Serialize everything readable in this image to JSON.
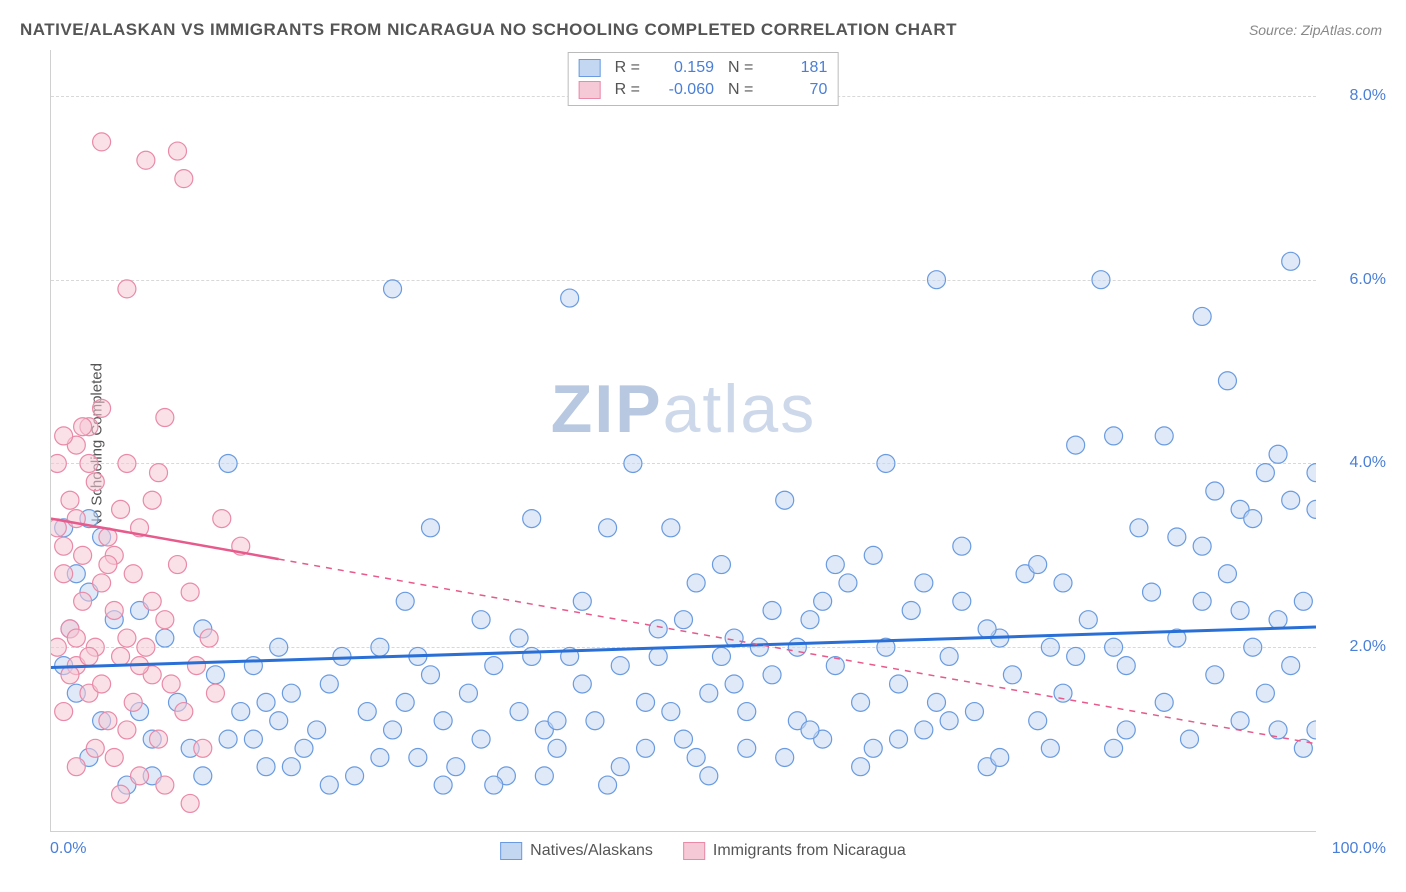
{
  "title": "NATIVE/ALASKAN VS IMMIGRANTS FROM NICARAGUA NO SCHOOLING COMPLETED CORRELATION CHART",
  "source": "Source: ZipAtlas.com",
  "y_axis_label": "No Schooling Completed",
  "watermark_bold": "ZIP",
  "watermark_light": "atlas",
  "chart": {
    "type": "scatter",
    "x_domain": [
      0,
      100
    ],
    "y_domain": [
      0,
      8.5
    ],
    "x_ticks": [
      {
        "pos": 0,
        "label": "0.0%"
      },
      {
        "pos": 100,
        "label": "100.0%"
      }
    ],
    "y_ticks": [
      {
        "pos": 2.0,
        "label": "2.0%"
      },
      {
        "pos": 4.0,
        "label": "4.0%"
      },
      {
        "pos": 6.0,
        "label": "6.0%"
      },
      {
        "pos": 8.0,
        "label": "8.0%"
      }
    ],
    "grid_color": "#d8d8d8",
    "background_color": "#ffffff",
    "series": [
      {
        "id": "blue",
        "label": "Natives/Alaskans",
        "R": "0.159",
        "N": "181",
        "marker_fill": "#c4d7f2",
        "marker_stroke": "#6a9be0",
        "marker_radius": 9,
        "fill_opacity": 0.55,
        "trend": {
          "x1": 0,
          "y1": 1.78,
          "x2": 100,
          "y2": 2.22,
          "solid_until_x": 100,
          "color": "#2a6fd6",
          "width": 3
        },
        "points": [
          [
            1,
            1.8
          ],
          [
            1,
            3.3
          ],
          [
            2,
            2.8
          ],
          [
            3,
            2.6
          ],
          [
            4,
            1.2
          ],
          [
            3,
            3.4
          ],
          [
            1.5,
            2.2
          ],
          [
            2,
            1.5
          ],
          [
            4,
            3.2
          ],
          [
            5,
            2.3
          ],
          [
            6,
            0.5
          ],
          [
            7,
            1.3
          ],
          [
            8,
            1.0
          ],
          [
            9,
            2.1
          ],
          [
            10,
            1.4
          ],
          [
            11,
            0.9
          ],
          [
            12,
            2.2
          ],
          [
            13,
            1.7
          ],
          [
            14,
            1.0
          ],
          [
            15,
            1.3
          ],
          [
            16,
            1.8
          ],
          [
            17,
            0.7
          ],
          [
            18,
            1.2
          ],
          [
            19,
            1.5
          ],
          [
            20,
            0.9
          ],
          [
            21,
            1.1
          ],
          [
            22,
            1.6
          ],
          [
            23,
            1.9
          ],
          [
            24,
            0.6
          ],
          [
            25,
            1.3
          ],
          [
            26,
            2.0
          ],
          [
            14,
            4.0
          ],
          [
            27,
            5.9
          ],
          [
            28,
            1.4
          ],
          [
            29,
            0.8
          ],
          [
            30,
            1.7
          ],
          [
            31,
            1.2
          ],
          [
            32,
            0.7
          ],
          [
            33,
            1.5
          ],
          [
            34,
            1.0
          ],
          [
            35,
            1.8
          ],
          [
            36,
            0.6
          ],
          [
            37,
            1.3
          ],
          [
            38,
            3.4
          ],
          [
            39,
            1.1
          ],
          [
            40,
            0.9
          ],
          [
            41,
            5.8
          ],
          [
            42,
            1.6
          ],
          [
            43,
            1.2
          ],
          [
            44,
            3.3
          ],
          [
            45,
            0.7
          ],
          [
            46,
            4.0
          ],
          [
            47,
            1.4
          ],
          [
            48,
            1.9
          ],
          [
            49,
            3.3
          ],
          [
            50,
            1.0
          ],
          [
            51,
            2.7
          ],
          [
            52,
            1.5
          ],
          [
            53,
            1.9
          ],
          [
            54,
            2.1
          ],
          [
            55,
            1.3
          ],
          [
            56,
            2.0
          ],
          [
            57,
            1.7
          ],
          [
            58,
            0.8
          ],
          [
            59,
            1.2
          ],
          [
            60,
            2.3
          ],
          [
            61,
            1.0
          ],
          [
            62,
            1.8
          ],
          [
            63,
            2.7
          ],
          [
            64,
            1.4
          ],
          [
            65,
            0.9
          ],
          [
            66,
            2.0
          ],
          [
            67,
            1.6
          ],
          [
            68,
            2.4
          ],
          [
            69,
            1.1
          ],
          [
            70,
            6.0
          ],
          [
            71,
            1.9
          ],
          [
            72,
            2.5
          ],
          [
            73,
            1.3
          ],
          [
            74,
            0.7
          ],
          [
            75,
            2.1
          ],
          [
            76,
            1.7
          ],
          [
            77,
            2.8
          ],
          [
            78,
            1.2
          ],
          [
            79,
            2.0
          ],
          [
            80,
            1.5
          ],
          [
            81,
            4.2
          ],
          [
            82,
            2.3
          ],
          [
            83,
            6.0
          ],
          [
            84,
            0.9
          ],
          [
            85,
            1.8
          ],
          [
            86,
            3.3
          ],
          [
            87,
            2.6
          ],
          [
            84,
            4.3
          ],
          [
            88,
            1.4
          ],
          [
            89,
            2.1
          ],
          [
            90,
            1.0
          ],
          [
            91,
            3.1
          ],
          [
            91,
            5.6
          ],
          [
            92,
            1.7
          ],
          [
            93,
            2.8
          ],
          [
            93,
            4.9
          ],
          [
            94,
            3.5
          ],
          [
            94,
            1.2
          ],
          [
            95,
            3.4
          ],
          [
            95,
            2.0
          ],
          [
            96,
            3.9
          ],
          [
            96,
            1.5
          ],
          [
            97,
            4.1
          ],
          [
            97,
            2.3
          ],
          [
            98,
            3.6
          ],
          [
            98,
            1.8
          ],
          [
            98,
            6.2
          ],
          [
            99,
            2.5
          ],
          [
            99,
            0.9
          ],
          [
            100,
            1.1
          ],
          [
            30,
            3.3
          ],
          [
            35,
            0.5
          ],
          [
            40,
            1.2
          ],
          [
            45,
            1.8
          ],
          [
            50,
            2.3
          ],
          [
            55,
            0.9
          ],
          [
            60,
            1.1
          ],
          [
            65,
            3.0
          ],
          [
            70,
            1.4
          ],
          [
            75,
            0.8
          ],
          [
            80,
            2.7
          ],
          [
            85,
            1.1
          ],
          [
            52,
            0.6
          ],
          [
            58,
            3.6
          ],
          [
            62,
            2.9
          ],
          [
            48,
            2.2
          ],
          [
            42,
            2.5
          ],
          [
            38,
            1.9
          ],
          [
            66,
            4.0
          ],
          [
            72,
            3.1
          ],
          [
            78,
            2.9
          ],
          [
            88,
            4.3
          ],
          [
            92,
            3.7
          ],
          [
            22,
            0.5
          ],
          [
            26,
            0.8
          ],
          [
            34,
            2.3
          ],
          [
            44,
            0.5
          ],
          [
            54,
            1.6
          ],
          [
            64,
            0.7
          ],
          [
            74,
            2.2
          ],
          [
            84,
            2.0
          ],
          [
            94,
            2.4
          ],
          [
            18,
            2.0
          ],
          [
            28,
            2.5
          ],
          [
            8,
            0.6
          ],
          [
            12,
            0.6
          ],
          [
            16,
            1.0
          ],
          [
            100,
            3.5
          ],
          [
            100,
            3.9
          ],
          [
            97,
            1.1
          ],
          [
            89,
            3.2
          ],
          [
            79,
            0.9
          ],
          [
            69,
            2.7
          ],
          [
            59,
            2.0
          ],
          [
            49,
            1.3
          ],
          [
            39,
            0.6
          ],
          [
            29,
            1.9
          ],
          [
            19,
            0.7
          ],
          [
            31,
            0.5
          ],
          [
            41,
            1.9
          ],
          [
            51,
            0.8
          ],
          [
            61,
            2.5
          ],
          [
            71,
            1.2
          ],
          [
            81,
            1.9
          ],
          [
            91,
            2.5
          ],
          [
            53,
            2.9
          ],
          [
            57,
            2.4
          ],
          [
            47,
            0.9
          ],
          [
            37,
            2.1
          ],
          [
            27,
            1.1
          ],
          [
            17,
            1.4
          ],
          [
            7,
            2.4
          ],
          [
            3,
            0.8
          ],
          [
            67,
            1.0
          ]
        ]
      },
      {
        "id": "pink",
        "label": "Immigrants from Nicaragua",
        "R": "-0.060",
        "N": "70",
        "marker_fill": "#f6c9d6",
        "marker_stroke": "#e98aa8",
        "marker_radius": 9,
        "fill_opacity": 0.55,
        "trend": {
          "x1": 0,
          "y1": 3.4,
          "x2": 100,
          "y2": 0.95,
          "solid_until_x": 18,
          "color": "#e75a8c",
          "width": 2.5
        },
        "points": [
          [
            0.5,
            3.3
          ],
          [
            1,
            3.1
          ],
          [
            1,
            2.8
          ],
          [
            1.5,
            3.6
          ],
          [
            1.5,
            2.2
          ],
          [
            2,
            4.2
          ],
          [
            2,
            1.8
          ],
          [
            2.5,
            3.0
          ],
          [
            2.5,
            2.5
          ],
          [
            3,
            4.4
          ],
          [
            3,
            1.5
          ],
          [
            3.5,
            2.0
          ],
          [
            3.5,
            3.8
          ],
          [
            4,
            2.7
          ],
          [
            4,
            4.6
          ],
          [
            4.5,
            1.2
          ],
          [
            4.5,
            3.2
          ],
          [
            5,
            2.4
          ],
          [
            5,
            0.8
          ],
          [
            5.5,
            3.5
          ],
          [
            5.5,
            1.9
          ],
          [
            6,
            2.1
          ],
          [
            6,
            4.0
          ],
          [
            6.5,
            1.4
          ],
          [
            6.5,
            2.8
          ],
          [
            7,
            3.3
          ],
          [
            7,
            0.6
          ],
          [
            7.5,
            2.0
          ],
          [
            7.5,
            7.3
          ],
          [
            8,
            1.7
          ],
          [
            8,
            2.5
          ],
          [
            8.5,
            3.9
          ],
          [
            8.5,
            1.0
          ],
          [
            9,
            2.3
          ],
          [
            9,
            0.5
          ],
          [
            9.5,
            1.6
          ],
          [
            10,
            7.4
          ],
          [
            10,
            2.9
          ],
          [
            10.5,
            1.3
          ],
          [
            10.5,
            7.1
          ],
          [
            11,
            2.6
          ],
          [
            11.5,
            1.8
          ],
          [
            12,
            0.9
          ],
          [
            12.5,
            2.1
          ],
          [
            13,
            1.5
          ],
          [
            13.5,
            3.4
          ],
          [
            15,
            3.1
          ],
          [
            4,
            7.5
          ],
          [
            6,
            5.9
          ],
          [
            2,
            2.1
          ],
          [
            3,
            1.9
          ],
          [
            4,
            1.6
          ],
          [
            5,
            3.0
          ],
          [
            6,
            1.1
          ],
          [
            7,
            1.8
          ],
          [
            8,
            3.6
          ],
          [
            9,
            4.5
          ],
          [
            2,
            0.7
          ],
          [
            3,
            4.0
          ],
          [
            1,
            1.3
          ],
          [
            1.5,
            1.7
          ],
          [
            2.5,
            4.4
          ],
          [
            3.5,
            0.9
          ],
          [
            4.5,
            2.9
          ],
          [
            5.5,
            0.4
          ],
          [
            0.5,
            2.0
          ],
          [
            0.5,
            4.0
          ],
          [
            1,
            4.3
          ],
          [
            2,
            3.4
          ],
          [
            11,
            0.3
          ]
        ]
      }
    ]
  },
  "legend_bottom": [
    {
      "label": "Natives/Alaskans",
      "fill": "#c4d7f2",
      "stroke": "#6a9be0"
    },
    {
      "label": "Immigrants from Nicaragua",
      "fill": "#f6c9d6",
      "stroke": "#e98aa8"
    }
  ]
}
